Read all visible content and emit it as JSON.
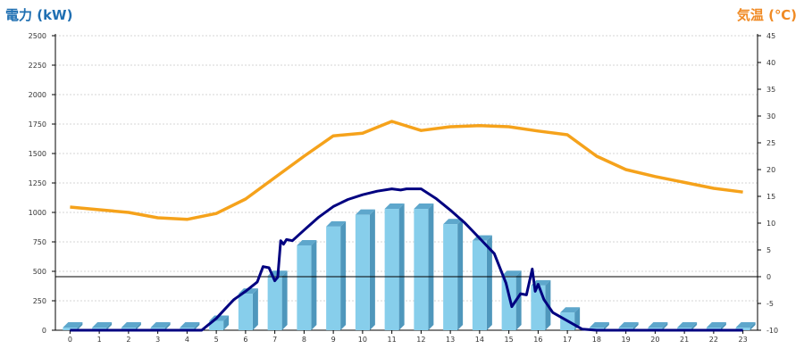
{
  "chart_data": {
    "type": "bar",
    "left_axis_label": "電力 (kW)",
    "right_axis_label": "気温 (℃)",
    "categories": [
      "0",
      "1",
      "2",
      "3",
      "4",
      "5",
      "6",
      "7",
      "8",
      "9",
      "10",
      "11",
      "12",
      "13",
      "14",
      "15",
      "16",
      "17",
      "18",
      "19",
      "20",
      "21",
      "22",
      "23"
    ],
    "ylim_left": [
      0,
      2500
    ],
    "ylim_right": [
      -10,
      45
    ],
    "yticks_left": [
      0,
      250,
      500,
      750,
      1000,
      1250,
      1500,
      1750,
      2000,
      2250,
      2500
    ],
    "yticks_right": [
      -10,
      -5,
      0,
      5,
      10,
      15,
      20,
      25,
      30,
      35,
      40,
      45
    ],
    "grid": true,
    "bar_series": {
      "axis": "left",
      "color": "#87ceeb",
      "values": [
        0,
        0,
        0,
        0,
        0,
        80,
        310,
        460,
        720,
        880,
        980,
        1030,
        1030,
        900,
        760,
        460,
        380,
        150,
        0,
        0,
        0,
        0,
        0,
        0
      ]
    },
    "power_line": {
      "axis": "left",
      "color": "#000080",
      "points": [
        [
          0,
          0
        ],
        [
          1,
          0
        ],
        [
          2,
          0
        ],
        [
          3,
          0
        ],
        [
          4,
          0
        ],
        [
          4.5,
          0
        ],
        [
          4.7,
          40
        ],
        [
          5.0,
          100
        ],
        [
          5.3,
          180
        ],
        [
          5.6,
          260
        ],
        [
          6.0,
          330
        ],
        [
          6.4,
          410
        ],
        [
          6.6,
          540
        ],
        [
          6.8,
          530
        ],
        [
          7.0,
          420
        ],
        [
          7.1,
          450
        ],
        [
          7.2,
          760
        ],
        [
          7.3,
          730
        ],
        [
          7.4,
          770
        ],
        [
          7.6,
          760
        ],
        [
          8.0,
          850
        ],
        [
          8.5,
          960
        ],
        [
          9.0,
          1050
        ],
        [
          9.5,
          1110
        ],
        [
          10.0,
          1150
        ],
        [
          10.5,
          1180
        ],
        [
          11.0,
          1200
        ],
        [
          11.3,
          1190
        ],
        [
          11.5,
          1200
        ],
        [
          12.0,
          1200
        ],
        [
          12.5,
          1120
        ],
        [
          13.0,
          1020
        ],
        [
          13.5,
          910
        ],
        [
          14.0,
          780
        ],
        [
          14.5,
          650
        ],
        [
          14.9,
          400
        ],
        [
          15.1,
          200
        ],
        [
          15.4,
          310
        ],
        [
          15.6,
          300
        ],
        [
          15.8,
          520
        ],
        [
          15.9,
          330
        ],
        [
          16.0,
          390
        ],
        [
          16.2,
          260
        ],
        [
          16.5,
          150
        ],
        [
          17.0,
          80
        ],
        [
          17.5,
          10
        ],
        [
          18.0,
          0
        ],
        [
          19,
          0
        ],
        [
          20,
          0
        ],
        [
          21,
          0
        ],
        [
          22,
          0
        ],
        [
          23,
          0
        ]
      ]
    },
    "temp_line": {
      "axis": "right",
      "color": "#f5a21b",
      "points": [
        [
          0,
          13
        ],
        [
          1,
          12.5
        ],
        [
          2,
          12
        ],
        [
          3,
          11
        ],
        [
          4,
          10.7
        ],
        [
          5,
          11.8
        ],
        [
          6,
          14.5
        ],
        [
          7,
          18.5
        ],
        [
          8,
          22.5
        ],
        [
          9,
          26.3
        ],
        [
          10,
          26.8
        ],
        [
          11,
          29
        ],
        [
          12,
          27.3
        ],
        [
          13,
          28
        ],
        [
          14,
          28.2
        ],
        [
          15,
          28
        ],
        [
          16,
          27.2
        ],
        [
          17,
          26.5
        ],
        [
          18,
          22.5
        ],
        [
          19,
          20
        ],
        [
          20,
          18.7
        ],
        [
          21,
          17.6
        ],
        [
          22,
          16.5
        ],
        [
          23,
          15.8
        ]
      ]
    },
    "reference_line": {
      "axis": "right",
      "value": 0,
      "color": "#000000"
    }
  }
}
